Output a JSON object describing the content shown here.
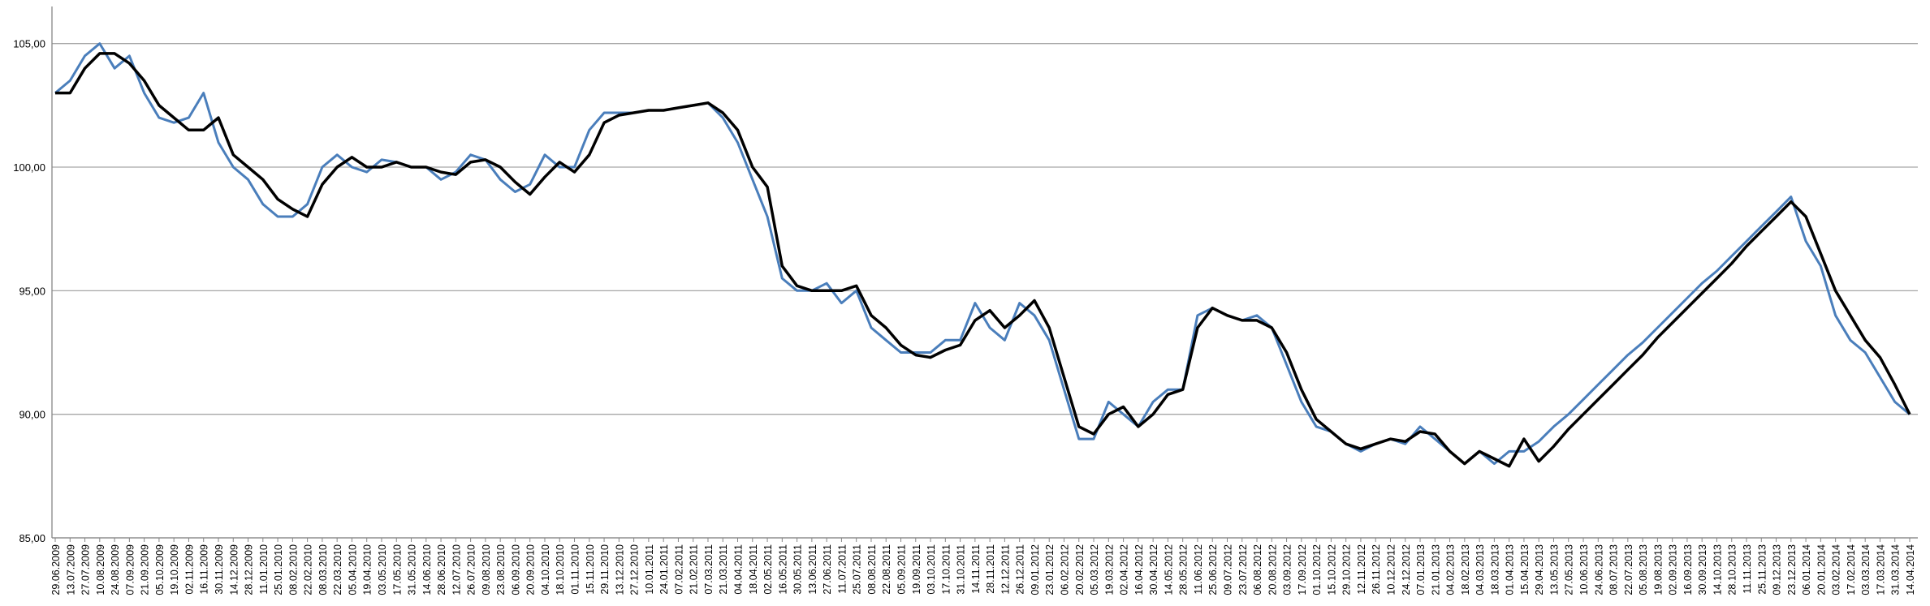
{
  "chart_data": {
    "type": "line",
    "categories": [
      "29.06.2009",
      "13.07.2009",
      "27.07.2009",
      "10.08.2009",
      "24.08.2009",
      "07.09.2009",
      "21.09.2009",
      "05.10.2009",
      "19.10.2009",
      "02.11.2009",
      "16.11.2009",
      "30.11.2009",
      "14.12.2009",
      "28.12.2009",
      "11.01.2010",
      "25.01.2010",
      "08.02.2010",
      "22.02.2010",
      "08.03.2010",
      "22.03.2010",
      "05.04.2010",
      "19.04.2010",
      "03.05.2010",
      "17.05.2010",
      "31.05.2010",
      "14.06.2010",
      "28.06.2010",
      "12.07.2010",
      "26.07.2010",
      "09.08.2010",
      "23.08.2010",
      "06.09.2010",
      "20.09.2010",
      "04.10.2010",
      "18.10.2010",
      "01.11.2010",
      "15.11.2010",
      "29.11.2010",
      "13.12.2010",
      "27.12.2010",
      "10.01.2011",
      "24.01.2011",
      "07.02.2011",
      "21.02.2011",
      "07.03.2011",
      "21.03.2011",
      "04.04.2011",
      "18.04.2011",
      "02.05.2011",
      "16.05.2011",
      "30.05.2011",
      "13.06.2011",
      "27.06.2011",
      "11.07.2011",
      "25.07.2011",
      "08.08.2011",
      "22.08.2011",
      "05.09.2011",
      "19.09.2011",
      "03.10.2011",
      "17.10.2011",
      "31.10.2011",
      "14.11.2011",
      "28.11.2011",
      "12.12.2011",
      "26.12.2011",
      "09.01.2012",
      "23.01.2012",
      "06.02.2012",
      "20.02.2012",
      "05.03.2012",
      "19.03.2012",
      "02.04.2012",
      "16.04.2012",
      "30.04.2012",
      "14.05.2012",
      "28.05.2012",
      "11.06.2012",
      "25.06.2012",
      "09.07.2012",
      "23.07.2012",
      "06.08.2012",
      "20.08.2012",
      "03.09.2012",
      "17.09.2012",
      "01.10.2012",
      "15.10.2012",
      "29.10.2012",
      "12.11.2012",
      "26.11.2012",
      "10.12.2012",
      "24.12.2012",
      "07.01.2013",
      "21.01.2013",
      "04.02.2013",
      "18.02.2013",
      "04.03.2013",
      "18.03.2013",
      "01.04.2013",
      "15.04.2013",
      "29.04.2013",
      "13.05.2013",
      "27.05.2013",
      "10.06.2013",
      "24.06.2013",
      "08.07.2013",
      "22.07.2013",
      "05.08.2013",
      "19.08.2013",
      "02.09.2013",
      "16.09.2013",
      "30.09.2013",
      "14.10.2013",
      "28.10.2013",
      "11.11.2013",
      "25.11.2013",
      "09.12.2013",
      "23.12.2013",
      "06.01.2014",
      "20.01.2014",
      "03.02.2014",
      "17.02.2014",
      "03.03.2014",
      "17.03.2014",
      "31.03.2014",
      "14.04.2014"
    ],
    "series": [
      {
        "color": "#4a7ebb",
        "width": 3,
        "values": [
          103,
          103.5,
          104.5,
          105,
          104,
          104.5,
          103,
          102,
          101.8,
          102,
          103,
          101,
          100,
          99.5,
          98.5,
          98,
          98,
          98.5,
          100,
          100.5,
          100,
          99.8,
          100.3,
          100.2,
          100,
          100,
          99.5,
          99.8,
          100.5,
          100.3,
          99.5,
          99,
          99.3,
          100.5,
          100,
          100,
          101.5,
          102.2,
          102.2,
          102.2,
          102.3,
          102.3,
          102.4,
          102.5,
          102.6,
          102,
          101,
          99.5,
          98,
          95.5,
          95,
          95,
          95.3,
          94.5,
          95,
          93.5,
          93,
          92.5,
          92.5,
          92.5,
          93,
          93,
          94.5,
          93.5,
          93,
          94.5,
          94,
          93,
          91,
          89,
          89,
          90.5,
          90,
          89.5,
          90.5,
          91,
          91,
          94,
          94.3,
          94,
          93.8,
          94,
          93.5,
          92,
          90.5,
          89.5,
          89.3,
          88.8,
          88.5,
          88.8,
          89,
          88.8,
          89.5,
          89,
          88.5,
          88,
          88.5,
          88,
          88.5,
          88.5,
          88.9,
          89.5,
          90,
          90.6,
          91.2,
          91.8,
          92.4,
          92.9,
          93.5,
          94.1,
          94.7,
          95.3,
          95.8,
          96.4,
          97,
          97.6,
          98.2,
          98.8,
          97,
          96,
          94,
          93,
          92.5,
          91.5,
          90.5,
          90
        ]
      },
      {
        "color": "#000000",
        "width": 3.5,
        "values": [
          103,
          103,
          104,
          104.6,
          104.6,
          104.2,
          103.5,
          102.5,
          102,
          101.5,
          101.5,
          102,
          100.5,
          100,
          99.5,
          98.7,
          98.3,
          98,
          99.3,
          100,
          100.4,
          100,
          100,
          100.2,
          100,
          100,
          99.8,
          99.7,
          100.2,
          100.3,
          100,
          99.4,
          98.9,
          99.6,
          100.2,
          99.8,
          100.5,
          101.8,
          102.1,
          102.2,
          102.3,
          102.3,
          102.4,
          102.5,
          102.6,
          102.2,
          101.5,
          100,
          99.2,
          96,
          95.2,
          95,
          95,
          95,
          95.2,
          94,
          93.5,
          92.8,
          92.4,
          92.3,
          92.6,
          92.8,
          93.8,
          94.2,
          93.5,
          94,
          94.6,
          93.5,
          91.5,
          89.5,
          89.2,
          90,
          90.3,
          89.5,
          90,
          90.8,
          91,
          93.5,
          94.3,
          94,
          93.8,
          93.8,
          93.5,
          92.5,
          91,
          89.8,
          89.3,
          88.8,
          88.6,
          88.8,
          89,
          88.9,
          89.3,
          89.2,
          88.5,
          88,
          88.5,
          88.2,
          87.9,
          89,
          88.1,
          88.7,
          89.4,
          90,
          90.6,
          91.2,
          91.8,
          92.4,
          93.1,
          93.7,
          94.3,
          94.9,
          95.5,
          96.1,
          96.8,
          97.4,
          98,
          98.6,
          98,
          96.5,
          95,
          94,
          93,
          92.3,
          91.2,
          90
        ]
      }
    ],
    "ylim": [
      85,
      106.5
    ],
    "yticks": [
      {
        "value": 85,
        "label": "85,00"
      },
      {
        "value": 90,
        "label": "90,00"
      },
      {
        "value": 95,
        "label": "95,00"
      },
      {
        "value": 100,
        "label": "100,00"
      },
      {
        "value": 105,
        "label": "105,00"
      }
    ],
    "grid": true
  }
}
